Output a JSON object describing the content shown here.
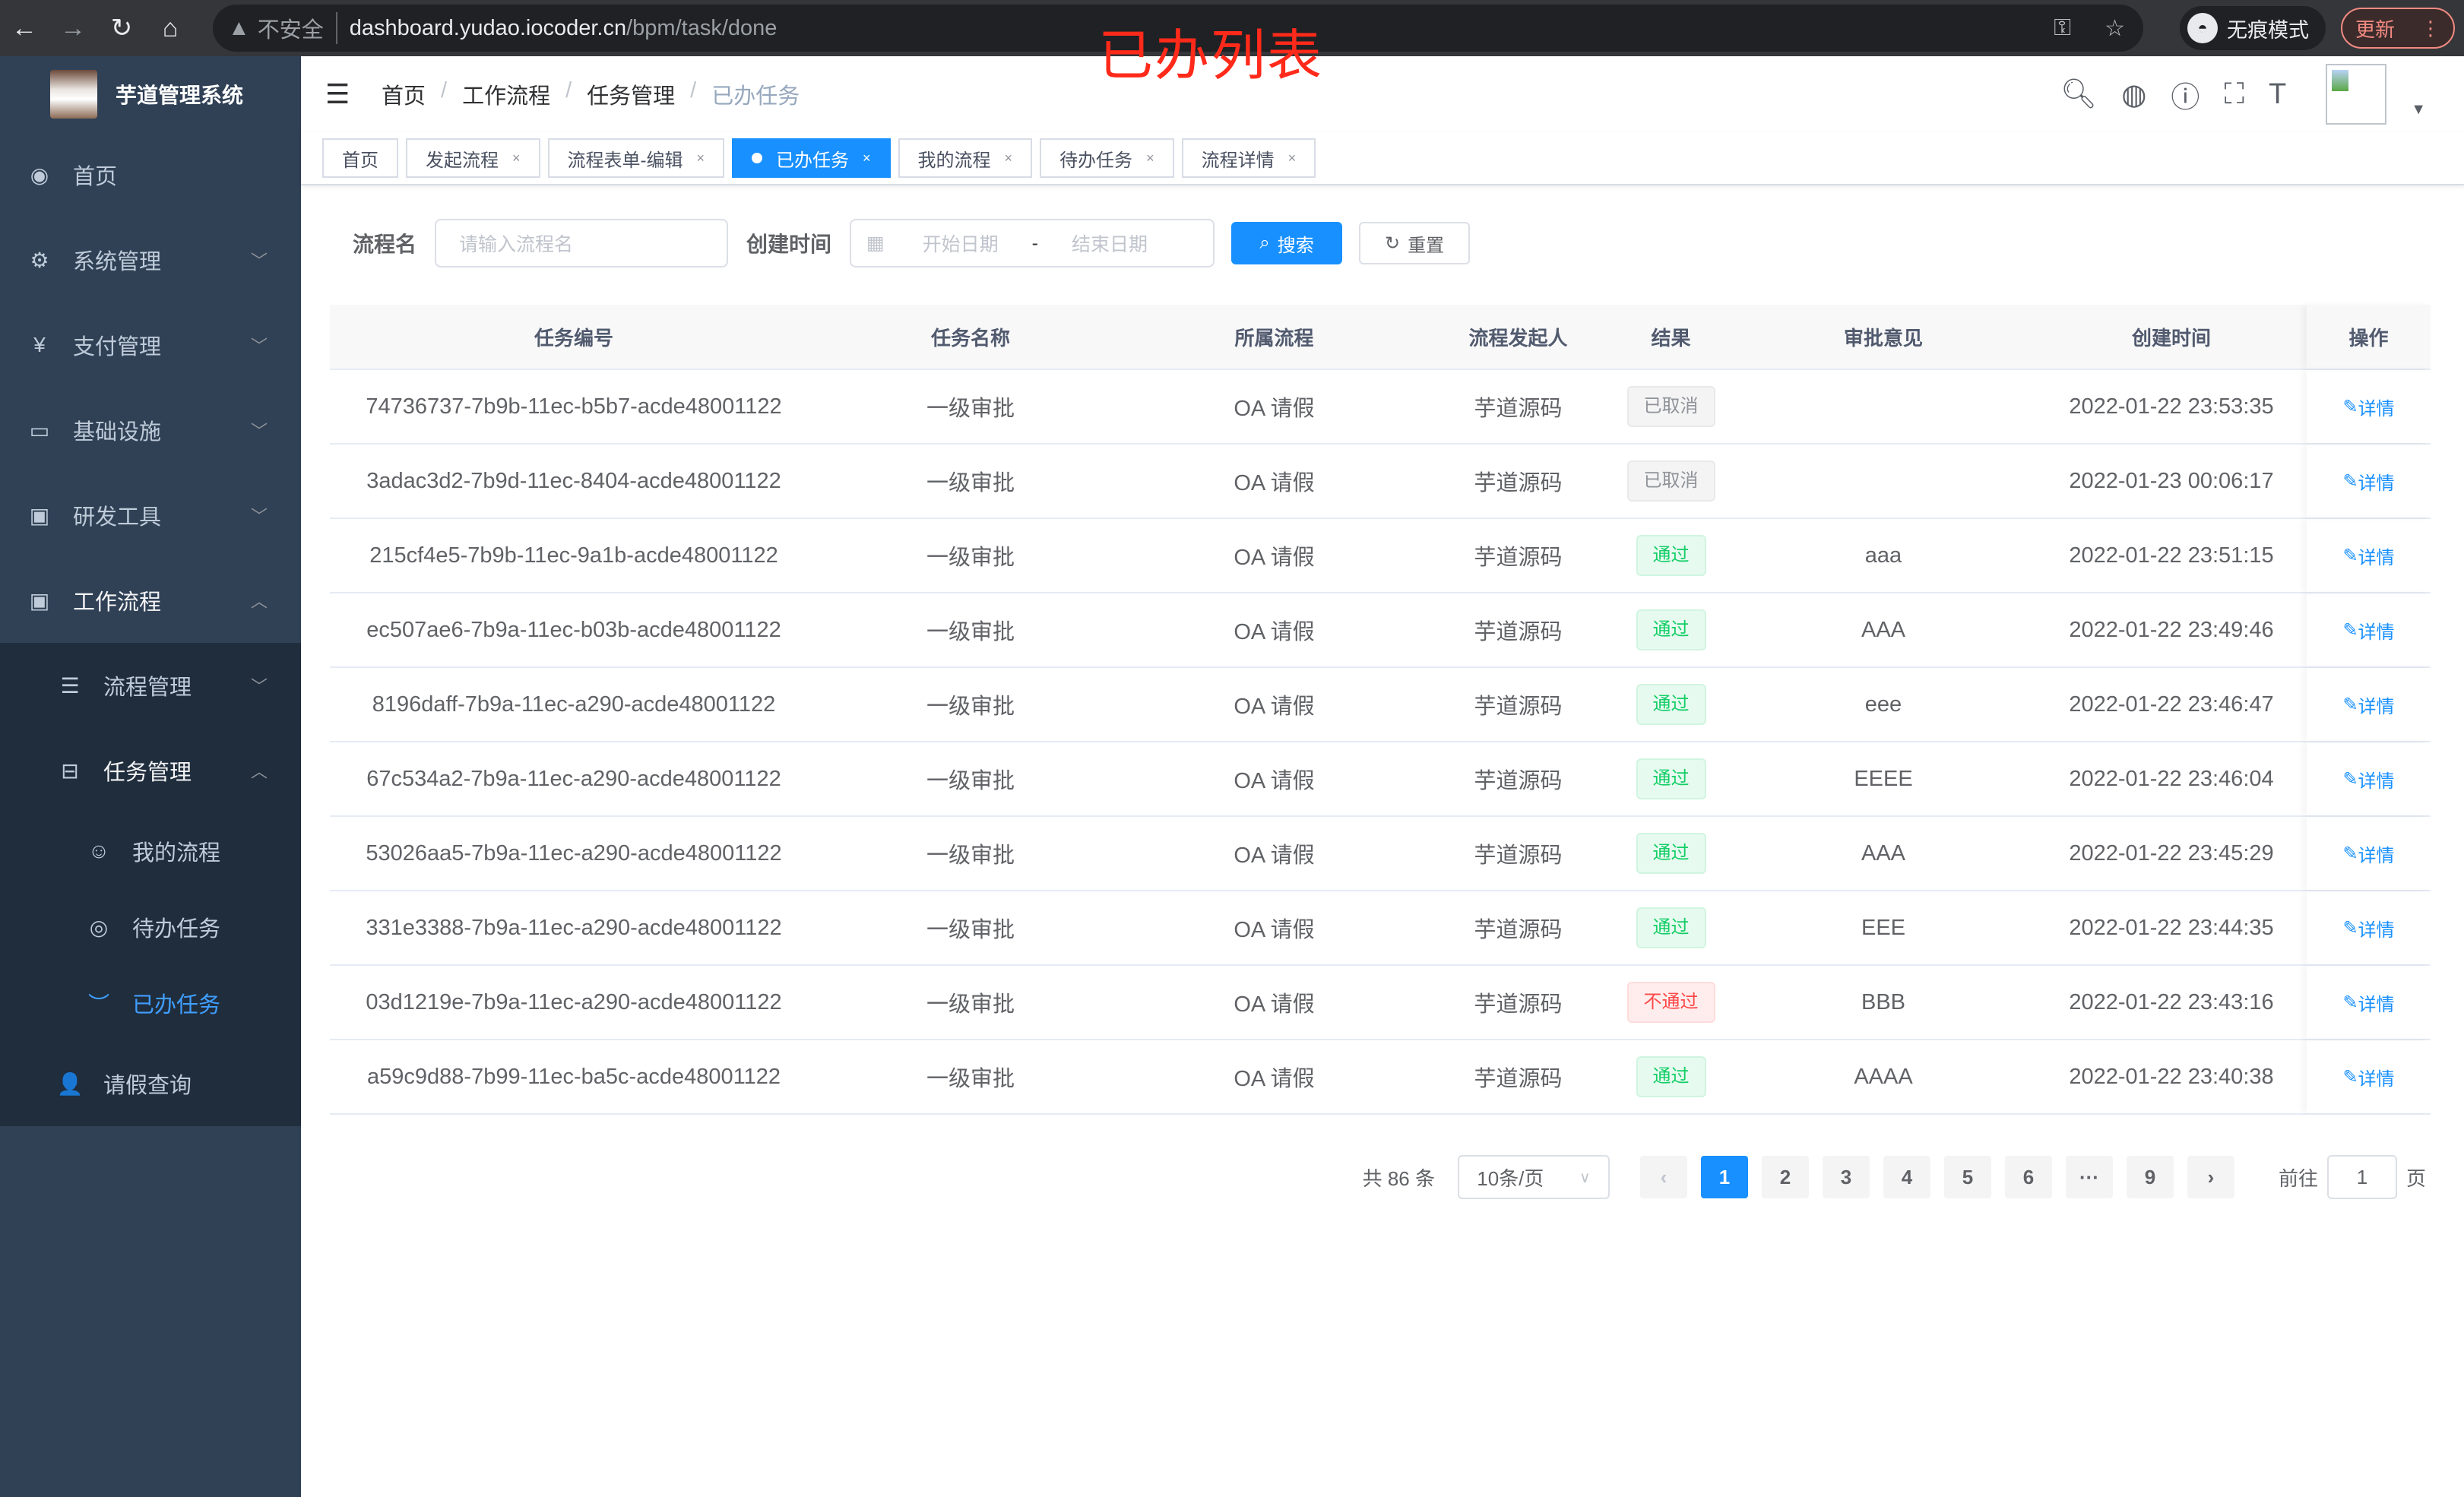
{
  "browser": {
    "insecure": "不安全",
    "host": "dashboard.yudao.iocoder.cn",
    "path": "/bpm/task/done",
    "incognito": "无痕模式",
    "update": "更新"
  },
  "overlay_title": "已办列表",
  "sidebar": {
    "app_name": "芋道管理系统",
    "items": [
      {
        "label": "首页",
        "icon": "dashboard-icon"
      },
      {
        "label": "系统管理",
        "icon": "gear-icon"
      },
      {
        "label": "支付管理",
        "icon": "yen-icon"
      },
      {
        "label": "基础设施",
        "icon": "monitor-icon"
      },
      {
        "label": "研发工具",
        "icon": "toolbox-icon"
      },
      {
        "label": "工作流程",
        "icon": "toolbox-icon"
      }
    ],
    "workflow_sub": [
      {
        "label": "流程管理"
      },
      {
        "label": "任务管理"
      }
    ],
    "task_sub": [
      {
        "label": "我的流程"
      },
      {
        "label": "待办任务"
      },
      {
        "label": "已办任务"
      }
    ],
    "leave": "请假查询"
  },
  "breadcrumb": [
    "首页",
    "工作流程",
    "任务管理",
    "已办任务"
  ],
  "tags": [
    "首页",
    "发起流程",
    "流程表单-编辑",
    "已办任务",
    "我的流程",
    "待办任务",
    "流程详情"
  ],
  "form": {
    "name_label": "流程名",
    "name_placeholder": "请输入流程名",
    "time_label": "创建时间",
    "start_placeholder": "开始日期",
    "sep": "-",
    "end_placeholder": "结束日期",
    "search": "搜索",
    "reset": "重置"
  },
  "table": {
    "columns": [
      "任务编号",
      "任务名称",
      "所属流程",
      "流程发起人",
      "结果",
      "审批意见",
      "创建时间",
      "操作"
    ],
    "action": "详情",
    "rows": [
      [
        "74736737-7b9b-11ec-b5b7-acde48001122",
        "一级审批",
        "OA 请假",
        "芋道源码",
        "已取消",
        "",
        "2022-01-22 23:53:35"
      ],
      [
        "3adac3d2-7b9d-11ec-8404-acde48001122",
        "一级审批",
        "OA 请假",
        "芋道源码",
        "已取消",
        "",
        "2022-01-23 00:06:17"
      ],
      [
        "215cf4e5-7b9b-11ec-9a1b-acde48001122",
        "一级审批",
        "OA 请假",
        "芋道源码",
        "通过",
        "aaa",
        "2022-01-22 23:51:15"
      ],
      [
        "ec507ae6-7b9a-11ec-b03b-acde48001122",
        "一级审批",
        "OA 请假",
        "芋道源码",
        "通过",
        "AAA",
        "2022-01-22 23:49:46"
      ],
      [
        "8196daff-7b9a-11ec-a290-acde48001122",
        "一级审批",
        "OA 请假",
        "芋道源码",
        "通过",
        "eee",
        "2022-01-22 23:46:47"
      ],
      [
        "67c534a2-7b9a-11ec-a290-acde48001122",
        "一级审批",
        "OA 请假",
        "芋道源码",
        "通过",
        "EEEE",
        "2022-01-22 23:46:04"
      ],
      [
        "53026aa5-7b9a-11ec-a290-acde48001122",
        "一级审批",
        "OA 请假",
        "芋道源码",
        "通过",
        "AAA",
        "2022-01-22 23:45:29"
      ],
      [
        "331e3388-7b9a-11ec-a290-acde48001122",
        "一级审批",
        "OA 请假",
        "芋道源码",
        "通过",
        "EEE",
        "2022-01-22 23:44:35"
      ],
      [
        "03d1219e-7b9a-11ec-a290-acde48001122",
        "一级审批",
        "OA 请假",
        "芋道源码",
        "不通过",
        "BBB",
        "2022-01-22 23:43:16"
      ],
      [
        "a59c9d88-7b99-11ec-ba5c-acde48001122",
        "一级审批",
        "OA 请假",
        "芋道源码",
        "通过",
        "AAAA",
        "2022-01-22 23:40:38"
      ]
    ]
  },
  "pagination": {
    "total": "共 86 条",
    "page_size": "10条/页",
    "pages": [
      "1",
      "2",
      "3",
      "4",
      "5",
      "6",
      "···",
      "9"
    ],
    "current": "1",
    "goto_label": "前往",
    "goto_value": "1",
    "page_suffix": "页"
  },
  "colors": {
    "primary": "#1890ff",
    "sidebar": "#304156",
    "success": "#13ce66",
    "danger": "#ff4949"
  }
}
